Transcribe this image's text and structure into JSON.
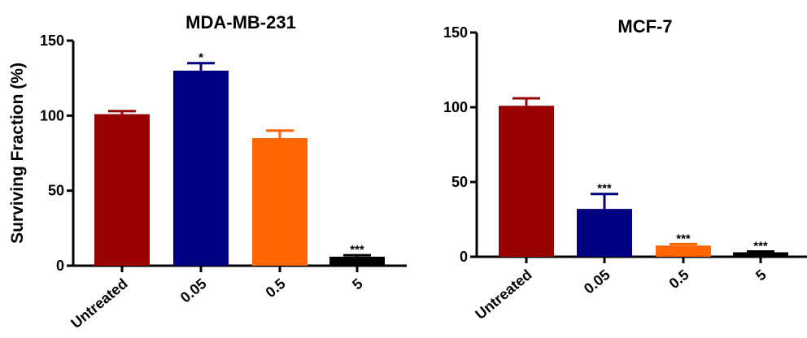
{
  "chart_data": [
    {
      "type": "bar",
      "title": "MDA-MB-231",
      "xlabel": "",
      "ylabel": "Surviving Fraction (%)",
      "ylim": [
        0,
        150
      ],
      "yticks": [
        0,
        50,
        100,
        150
      ],
      "grid": false,
      "categories": [
        "Untreated",
        "0.05",
        "0.5",
        "5"
      ],
      "values": [
        101,
        130,
        85,
        6
      ],
      "errors": [
        2,
        5,
        5,
        1
      ],
      "significance": [
        "",
        "*",
        "",
        "***"
      ],
      "colors": [
        "#990000",
        "#000080",
        "#ff6600",
        "#000000"
      ]
    },
    {
      "type": "bar",
      "title": "MCF-7",
      "xlabel": "",
      "ylabel": "",
      "ylim": [
        0,
        150
      ],
      "yticks": [
        0,
        50,
        100,
        150
      ],
      "grid": false,
      "categories": [
        "Untreated",
        "0.05",
        "0.5",
        "5"
      ],
      "values": [
        101,
        32,
        7.5,
        3
      ],
      "errors": [
        5,
        10,
        1,
        0.5
      ],
      "significance": [
        "",
        "***",
        "***",
        "***"
      ],
      "colors": [
        "#990000",
        "#000080",
        "#ff6600",
        "#000000"
      ]
    }
  ]
}
